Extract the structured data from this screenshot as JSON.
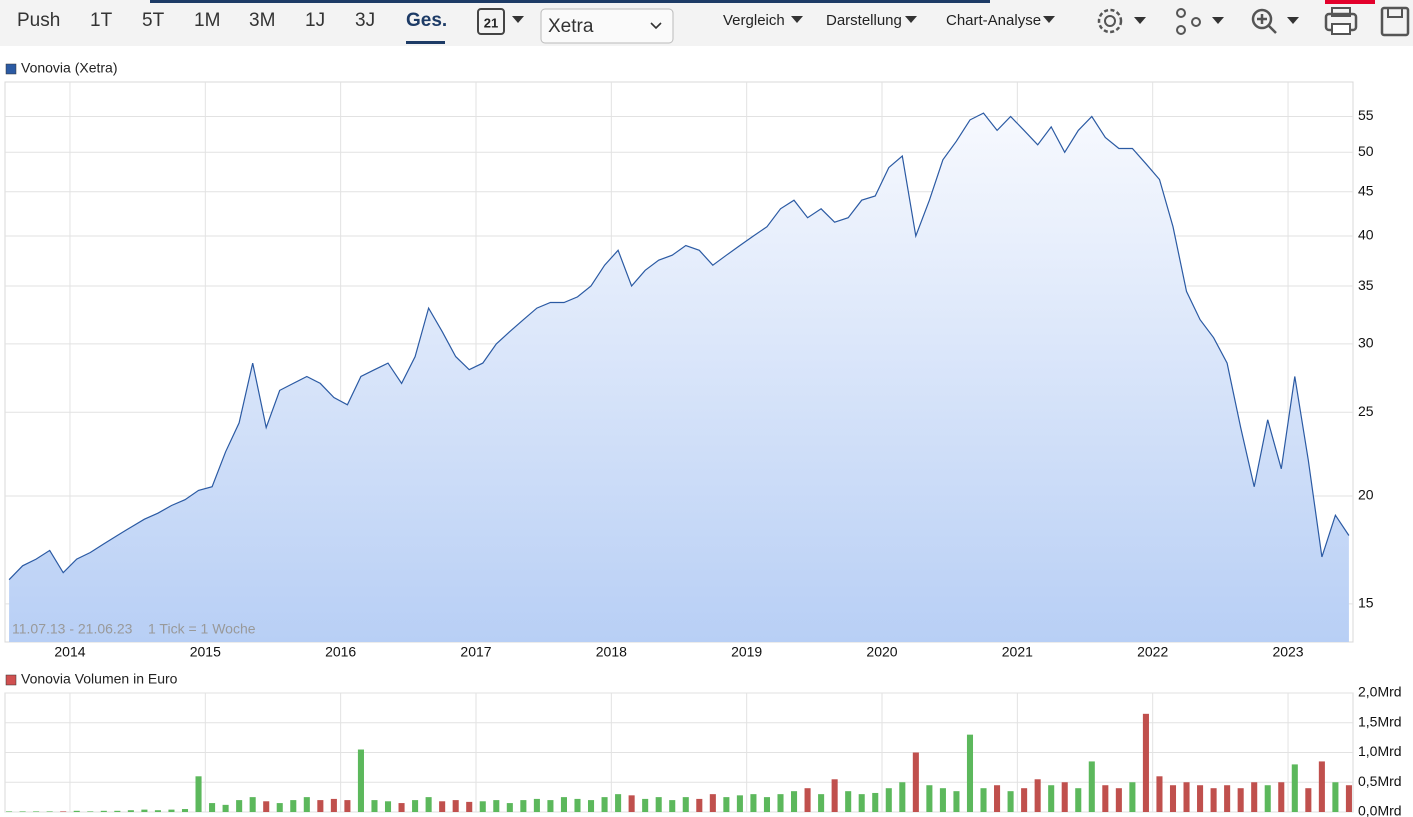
{
  "toolbar": {
    "periods": [
      "Push",
      "1T",
      "5T",
      "1M",
      "3M",
      "1J",
      "3J",
      "Ges."
    ],
    "active_period": 7,
    "calendar": "21",
    "exchange": "Xetra",
    "menus": [
      "Vergleich",
      "Darstellung",
      "Chart-Analyse"
    ]
  },
  "chart_data": [
    {
      "type": "line",
      "series": [
        {
          "name": "Vonovia (Xetra)",
          "color": "#2b5aa3",
          "values": [
            16.0,
            16.6,
            16.9,
            17.3,
            16.3,
            16.9,
            17.2,
            17.6,
            18.0,
            18.4,
            18.8,
            19.1,
            19.5,
            19.8,
            20.3,
            20.5,
            22.5,
            24.3,
            28.5,
            24.0,
            26.5,
            27.0,
            27.5,
            27.0,
            26.0,
            25.5,
            27.5,
            28.0,
            28.5,
            27.0,
            29.0,
            33.0,
            31.0,
            29.0,
            28.0,
            28.5,
            30.0,
            31.0,
            32.0,
            33.0,
            33.5,
            33.5,
            34.0,
            35.0,
            37.0,
            38.5,
            35.0,
            36.5,
            37.5,
            38.0,
            39.0,
            38.5,
            37.0,
            38.0,
            39.0,
            40.0,
            41.0,
            43.0,
            44.0,
            42.0,
            43.0,
            41.5,
            42.0,
            44.0,
            44.5,
            48.0,
            49.5,
            40.0,
            44.0,
            49.0,
            51.5,
            54.5,
            55.5,
            53.0,
            55.0,
            53.0,
            51.0,
            53.5,
            50.0,
            53.0,
            55.0,
            52.0,
            50.5,
            50.5,
            48.5,
            46.5,
            41.0,
            34.5,
            32.0,
            30.5,
            28.5,
            24.0,
            20.5,
            24.5,
            21.5,
            27.5,
            22.0,
            17.0,
            19.0,
            18.0
          ]
        }
      ],
      "x": [
        2013.55,
        2013.65,
        2013.75,
        2013.85,
        2013.95,
        2014.05,
        2014.15,
        2014.25,
        2014.35,
        2014.45,
        2014.55,
        2014.65,
        2014.75,
        2014.85,
        2014.95,
        2015.05,
        2015.15,
        2015.25,
        2015.35,
        2015.45,
        2015.55,
        2015.65,
        2015.75,
        2015.85,
        2015.95,
        2016.05,
        2016.15,
        2016.25,
        2016.35,
        2016.45,
        2016.55,
        2016.65,
        2016.75,
        2016.85,
        2016.95,
        2017.05,
        2017.15,
        2017.25,
        2017.35,
        2017.45,
        2017.55,
        2017.65,
        2017.75,
        2017.85,
        2017.95,
        2018.05,
        2018.15,
        2018.25,
        2018.35,
        2018.45,
        2018.55,
        2018.65,
        2018.75,
        2018.85,
        2018.95,
        2019.05,
        2019.15,
        2019.25,
        2019.35,
        2019.45,
        2019.55,
        2019.65,
        2019.75,
        2019.85,
        2019.95,
        2020.05,
        2020.15,
        2020.25,
        2020.35,
        2020.45,
        2020.55,
        2020.65,
        2020.75,
        2020.85,
        2020.95,
        2021.05,
        2021.15,
        2021.25,
        2021.35,
        2021.45,
        2021.55,
        2021.65,
        2021.75,
        2021.85,
        2021.95,
        2022.05,
        2022.15,
        2022.25,
        2022.35,
        2022.45,
        2022.55,
        2022.65,
        2022.75,
        2022.85,
        2022.95,
        2023.05,
        2023.15,
        2023.25,
        2023.35,
        2023.45
      ],
      "xlim": [
        2013.52,
        2023.48
      ],
      "xticks": [
        2014,
        2015,
        2016,
        2017,
        2018,
        2019,
        2020,
        2021,
        2022,
        2023
      ],
      "ylim": [
        13.55,
        60.3
      ],
      "yticks": [
        15,
        20,
        25,
        30,
        35,
        40,
        45,
        50,
        55
      ],
      "log_scale": true,
      "grid": true,
      "annotations": [
        "11.07.13 - 21.06.23",
        "1 Tick = 1 Woche"
      ]
    },
    {
      "type": "bar",
      "series": [
        {
          "name": "Vonovia Volumen in Euro",
          "color": "#d05050",
          "values": [
            0.01,
            0.01,
            0.01,
            0.01,
            0.01,
            0.02,
            0.01,
            0.02,
            0.02,
            0.03,
            0.04,
            0.03,
            0.04,
            0.05,
            0.6,
            0.15,
            0.12,
            0.2,
            0.25,
            0.18,
            0.15,
            0.2,
            0.25,
            0.2,
            0.22,
            0.2,
            1.05,
            0.2,
            0.18,
            0.15,
            0.2,
            0.25,
            0.18,
            0.2,
            0.17,
            0.18,
            0.2,
            0.15,
            0.2,
            0.22,
            0.2,
            0.25,
            0.22,
            0.2,
            0.25,
            0.3,
            0.28,
            0.22,
            0.25,
            0.2,
            0.25,
            0.22,
            0.3,
            0.25,
            0.28,
            0.3,
            0.25,
            0.3,
            0.35,
            0.4,
            0.3,
            0.55,
            0.35,
            0.3,
            0.32,
            0.4,
            0.5,
            1.0,
            0.45,
            0.4,
            0.35,
            1.3,
            0.4,
            0.45,
            0.35,
            0.4,
            0.55,
            0.45,
            0.5,
            0.4,
            0.85,
            0.45,
            0.4,
            0.5,
            1.65,
            0.6,
            0.45,
            0.5,
            0.45,
            0.4,
            0.45,
            0.4,
            0.5,
            0.45,
            0.5,
            0.8,
            0.4,
            0.85,
            0.5,
            0.45
          ]
        }
      ],
      "up_color": "#5cb85c",
      "down_color": "#c0504d",
      "x": [
        2013.55,
        2013.65,
        2013.75,
        2013.85,
        2013.95,
        2014.05,
        2014.15,
        2014.25,
        2014.35,
        2014.45,
        2014.55,
        2014.65,
        2014.75,
        2014.85,
        2014.95,
        2015.05,
        2015.15,
        2015.25,
        2015.35,
        2015.45,
        2015.55,
        2015.65,
        2015.75,
        2015.85,
        2015.95,
        2016.05,
        2016.15,
        2016.25,
        2016.35,
        2016.45,
        2016.55,
        2016.65,
        2016.75,
        2016.85,
        2016.95,
        2017.05,
        2017.15,
        2017.25,
        2017.35,
        2017.45,
        2017.55,
        2017.65,
        2017.75,
        2017.85,
        2017.95,
        2018.05,
        2018.15,
        2018.25,
        2018.35,
        2018.45,
        2018.55,
        2018.65,
        2018.75,
        2018.85,
        2018.95,
        2019.05,
        2019.15,
        2019.25,
        2019.35,
        2019.45,
        2019.55,
        2019.65,
        2019.75,
        2019.85,
        2019.95,
        2020.05,
        2020.15,
        2020.25,
        2020.35,
        2020.45,
        2020.55,
        2020.65,
        2020.75,
        2020.85,
        2020.95,
        2021.05,
        2021.15,
        2021.25,
        2021.35,
        2021.45,
        2021.55,
        2021.65,
        2021.75,
        2021.85,
        2021.95,
        2022.05,
        2022.15,
        2022.25,
        2022.35,
        2022.45,
        2022.55,
        2022.65,
        2022.75,
        2022.85,
        2022.95,
        2023.05,
        2023.15,
        2023.25,
        2023.35,
        2023.45
      ],
      "xlim": [
        2013.52,
        2023.48
      ],
      "xticks": [
        2014,
        2015,
        2016,
        2017,
        2018,
        2019,
        2020,
        2021,
        2022,
        2023
      ],
      "ylim": [
        0,
        2.0
      ],
      "yticks": [
        {
          "value": 0,
          "label": "0,0Mrd"
        },
        {
          "value": 0.5,
          "label": "0,5Mrd"
        },
        {
          "value": 1.0,
          "label": "1,0Mrd"
        },
        {
          "value": 1.5,
          "label": "1,5Mrd"
        },
        {
          "value": 2.0,
          "label": "2,0Mrd"
        }
      ],
      "grid": true
    }
  ]
}
